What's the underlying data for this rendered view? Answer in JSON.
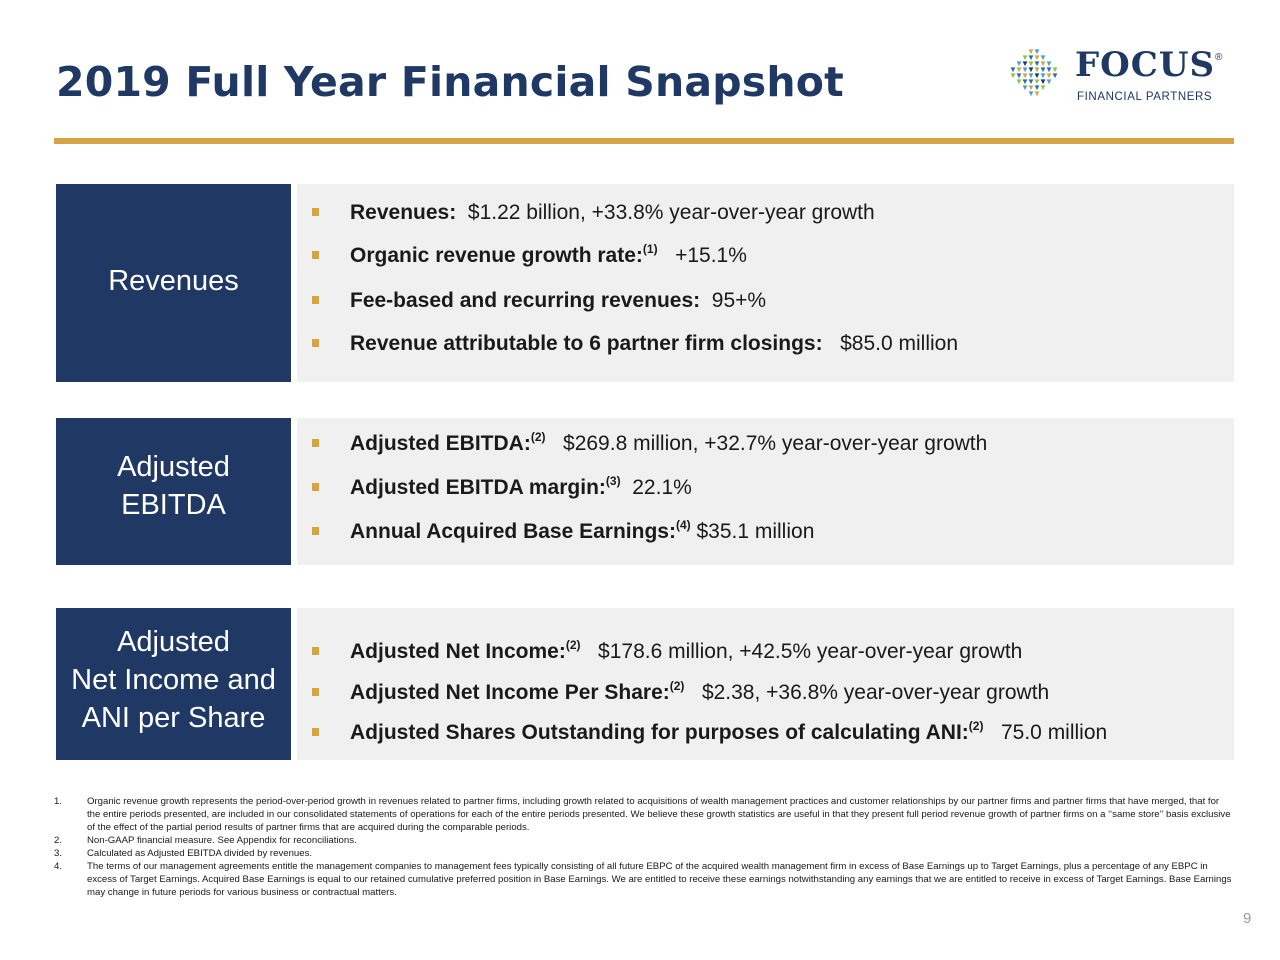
{
  "title": "2019 Full Year Financial Snapshot",
  "logo": {
    "word": "FOCUS",
    "registered": "®",
    "subtitle": "FINANCIAL PARTNERS",
    "colors": [
      "#1f3864",
      "#2e6ca4",
      "#4fa0c8",
      "#8cc63f",
      "#d6a543"
    ]
  },
  "colors": {
    "navy": "#1f3864",
    "gold": "#d6a543",
    "panel": "#f0f0f0"
  },
  "sections": [
    {
      "label_lines": [
        "Revenues"
      ],
      "bullets": [
        {
          "label": "Revenues:",
          "sup": "",
          "value": "$1.22 billion, +33.8% year-over-year growth"
        },
        {
          "label": "Organic revenue growth rate:",
          "sup": "(1)",
          "value": "+15.1%"
        },
        {
          "label": "Fee-based and recurring revenues:",
          "sup": "",
          "value": "95+%"
        },
        {
          "label": "Revenue attributable to 6 partner firm closings:",
          "sup": "",
          "value": "$85.0 million"
        }
      ]
    },
    {
      "label_lines": [
        "Adjusted",
        "EBITDA"
      ],
      "bullets": [
        {
          "label": "Adjusted EBITDA:",
          "sup": "(2)",
          "value": "$269.8 million, +32.7% year-over-year growth"
        },
        {
          "label": "Adjusted EBITDA margin:",
          "sup": "(3)",
          "value": "22.1%"
        },
        {
          "label": "Annual Acquired Base Earnings:",
          "sup": "(4)",
          "value": "$35.1 million"
        }
      ]
    },
    {
      "label_lines": [
        "Adjusted",
        "Net Income and",
        "ANI per Share"
      ],
      "bullets": [
        {
          "label": "Adjusted Net Income:",
          "sup": "(2)",
          "value": "$178.6 million, +42.5% year-over-year growth"
        },
        {
          "label": "Adjusted Net Income Per Share:",
          "sup": "(2)",
          "value": "$2.38, +36.8% year-over-year growth"
        },
        {
          "label": "Adjusted Shares Outstanding for purposes of calculating ANI:",
          "sup": "(2)",
          "value": "75.0 million"
        }
      ]
    }
  ],
  "footnotes": [
    {
      "num": "1.",
      "text": "Organic revenue growth represents the period-over-period growth in revenues related to partner firms, including growth related to acquisitions of wealth management practices and customer relationships by our partner firms and partner firms that have merged, that for the entire periods presented, are included in our consolidated statements of operations for each of the entire periods presented. We believe these growth statistics are useful in that they present full period revenue growth of partner firms on a ‘‘same store’’ basis exclusive of the effect of the partial period results of partner firms that are acquired during the comparable periods."
    },
    {
      "num": "2.",
      "text": "Non-GAAP financial measure. See Appendix for reconciliations."
    },
    {
      "num": "3.",
      "text": "Calculated as Adjusted EBITDA divided by revenues."
    },
    {
      "num": "4.",
      "text": "The terms of our management agreements entitle the management companies to management fees typically consisting of all future EBPC of the acquired wealth management firm in excess of Base Earnings up to Target Earnings, plus a percentage of any EBPC in excess of Target Earnings. Acquired Base Earnings is equal to our retained cumulative preferred position in Base Earnings. We are entitled to receive these earnings notwithstanding any earnings that we are entitled to receive in excess of Target Earnings. Base Earnings may change in future periods for various business or contractual matters."
    }
  ],
  "page_number": "9"
}
